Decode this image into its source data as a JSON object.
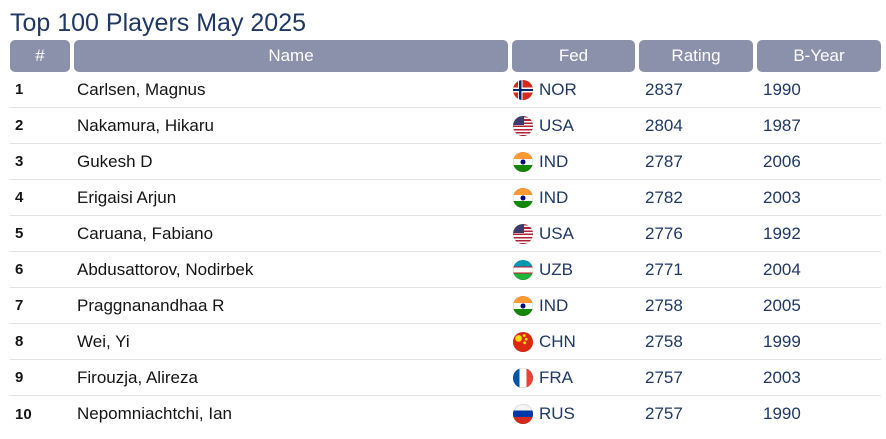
{
  "page": {
    "title": "Top 100 Players May 2025"
  },
  "table": {
    "headers": [
      {
        "key": "rank",
        "label": "#"
      },
      {
        "key": "name",
        "label": "Name"
      },
      {
        "key": "fed",
        "label": "Fed"
      },
      {
        "key": "rating",
        "label": "Rating"
      },
      {
        "key": "byear",
        "label": "B-Year"
      }
    ],
    "rows": [
      {
        "rank": "1",
        "name": "Carlsen, Magnus",
        "fed": "NOR",
        "flag_icon": "norway-flag-icon",
        "rating": "2837",
        "byear": "1990"
      },
      {
        "rank": "2",
        "name": "Nakamura, Hikaru",
        "fed": "USA",
        "flag_icon": "usa-flag-icon",
        "rating": "2804",
        "byear": "1987"
      },
      {
        "rank": "3",
        "name": "Gukesh D",
        "fed": "IND",
        "flag_icon": "india-flag-icon",
        "rating": "2787",
        "byear": "2006"
      },
      {
        "rank": "4",
        "name": "Erigaisi Arjun",
        "fed": "IND",
        "flag_icon": "india-flag-icon",
        "rating": "2782",
        "byear": "2003"
      },
      {
        "rank": "5",
        "name": "Caruana, Fabiano",
        "fed": "USA",
        "flag_icon": "usa-flag-icon",
        "rating": "2776",
        "byear": "1992"
      },
      {
        "rank": "6",
        "name": "Abdusattorov, Nodirbek",
        "fed": "UZB",
        "flag_icon": "uzbekistan-flag-icon",
        "rating": "2771",
        "byear": "2004"
      },
      {
        "rank": "7",
        "name": "Praggnanandhaa R",
        "fed": "IND",
        "flag_icon": "india-flag-icon",
        "rating": "2758",
        "byear": "2005"
      },
      {
        "rank": "8",
        "name": "Wei, Yi",
        "fed": "CHN",
        "flag_icon": "china-flag-icon",
        "rating": "2758",
        "byear": "1999"
      },
      {
        "rank": "9",
        "name": "Firouzja, Alireza",
        "fed": "FRA",
        "flag_icon": "france-flag-icon",
        "rating": "2757",
        "byear": "2003"
      },
      {
        "rank": "10",
        "name": "Nepomniachtchi, Ian",
        "fed": "RUS",
        "flag_icon": "russia-flag-icon",
        "rating": "2757",
        "byear": "1990"
      }
    ]
  },
  "colors": {
    "title_text": "#1f3864",
    "header_bg": "#8b90ab",
    "header_text": "#ffffff",
    "name_text": "#141414",
    "rank_text": "#141414",
    "number_text": "#1f3864",
    "separator": "#e2e2e2"
  }
}
